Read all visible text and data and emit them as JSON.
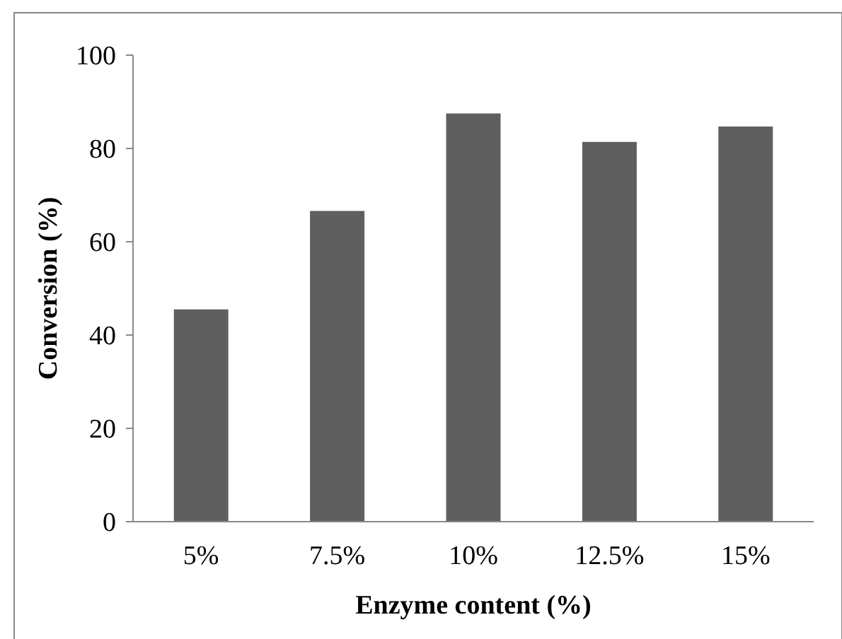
{
  "chart_data": {
    "type": "bar",
    "xlabel": "Enzyme content (%)",
    "ylabel": "Conversion (%)",
    "categories": [
      "5%",
      "7.5%",
      "10%",
      "12.5%",
      "15%"
    ],
    "values": [
      45.5,
      66.6,
      87.5,
      81.4,
      84.7
    ],
    "color": "#5f5f5f",
    "ylim": [
      0,
      100
    ],
    "yticks": [
      0,
      20,
      40,
      60,
      80,
      100
    ]
  }
}
